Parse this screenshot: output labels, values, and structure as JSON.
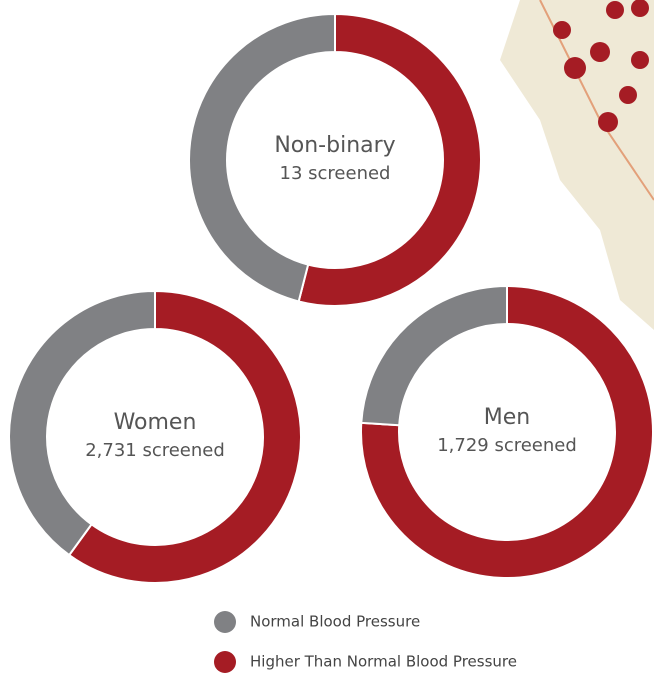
{
  "chart_data": [
    {
      "type": "pie",
      "title": "Non-binary",
      "subtitle": "13 screened",
      "values": [
        46,
        54
      ]
    },
    {
      "type": "pie",
      "title": "Women",
      "subtitle": "2,731 screened",
      "values": [
        40,
        60
      ]
    },
    {
      "type": "pie",
      "title": "Men",
      "subtitle": "1,729 screened",
      "values": [
        24,
        76
      ]
    }
  ],
  "legend": {
    "labels": [
      "Normal Blood Pressure",
      "Higher Than Normal Blood Pressure"
    ],
    "colors": [
      "#808184",
      "#a51c24"
    ]
  }
}
